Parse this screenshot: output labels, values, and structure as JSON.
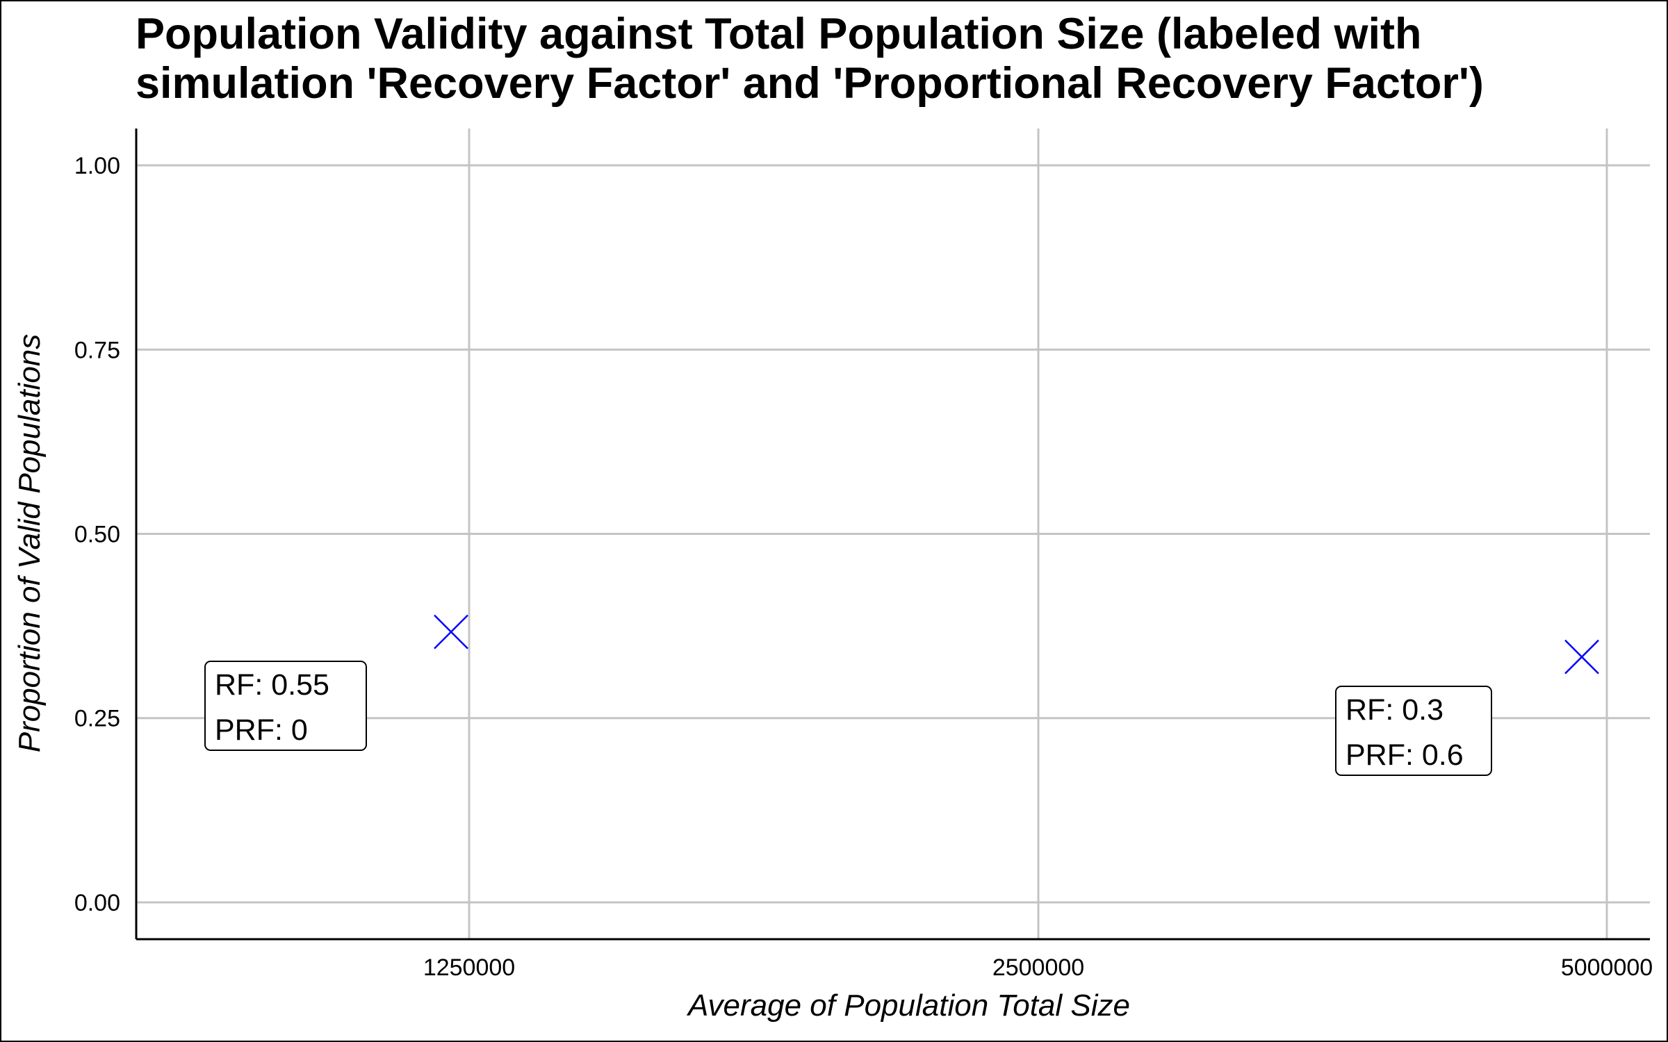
{
  "chart_data": {
    "type": "scatter",
    "title": "Population Validity against Total Population Size (labeled with simulation 'Recovery Factor' and 'Proportional Recovery Factor')",
    "xlabel": "Average of Population Total Size",
    "ylabel": "Proportion of Valid Populations",
    "x_scale": "categorical",
    "x_categories": [
      "1250000",
      "2500000",
      "5000000"
    ],
    "ylim": [
      -0.05,
      1.05
    ],
    "yticks": [
      0.0,
      0.25,
      0.5,
      0.75,
      1.0
    ],
    "ytick_labels": [
      "0.00",
      "0.25",
      "0.50",
      "0.75",
      "1.00"
    ],
    "grid": true,
    "marker": "x",
    "marker_color": "#0000ff",
    "points": [
      {
        "x": "1250000",
        "y": 0.367,
        "rf_label": "RF:  0.55",
        "prf_label": "PRF:  0"
      },
      {
        "x": "5000000",
        "y": 0.333,
        "rf_label": "RF:  0.3",
        "prf_label": "PRF:  0.6"
      }
    ]
  }
}
